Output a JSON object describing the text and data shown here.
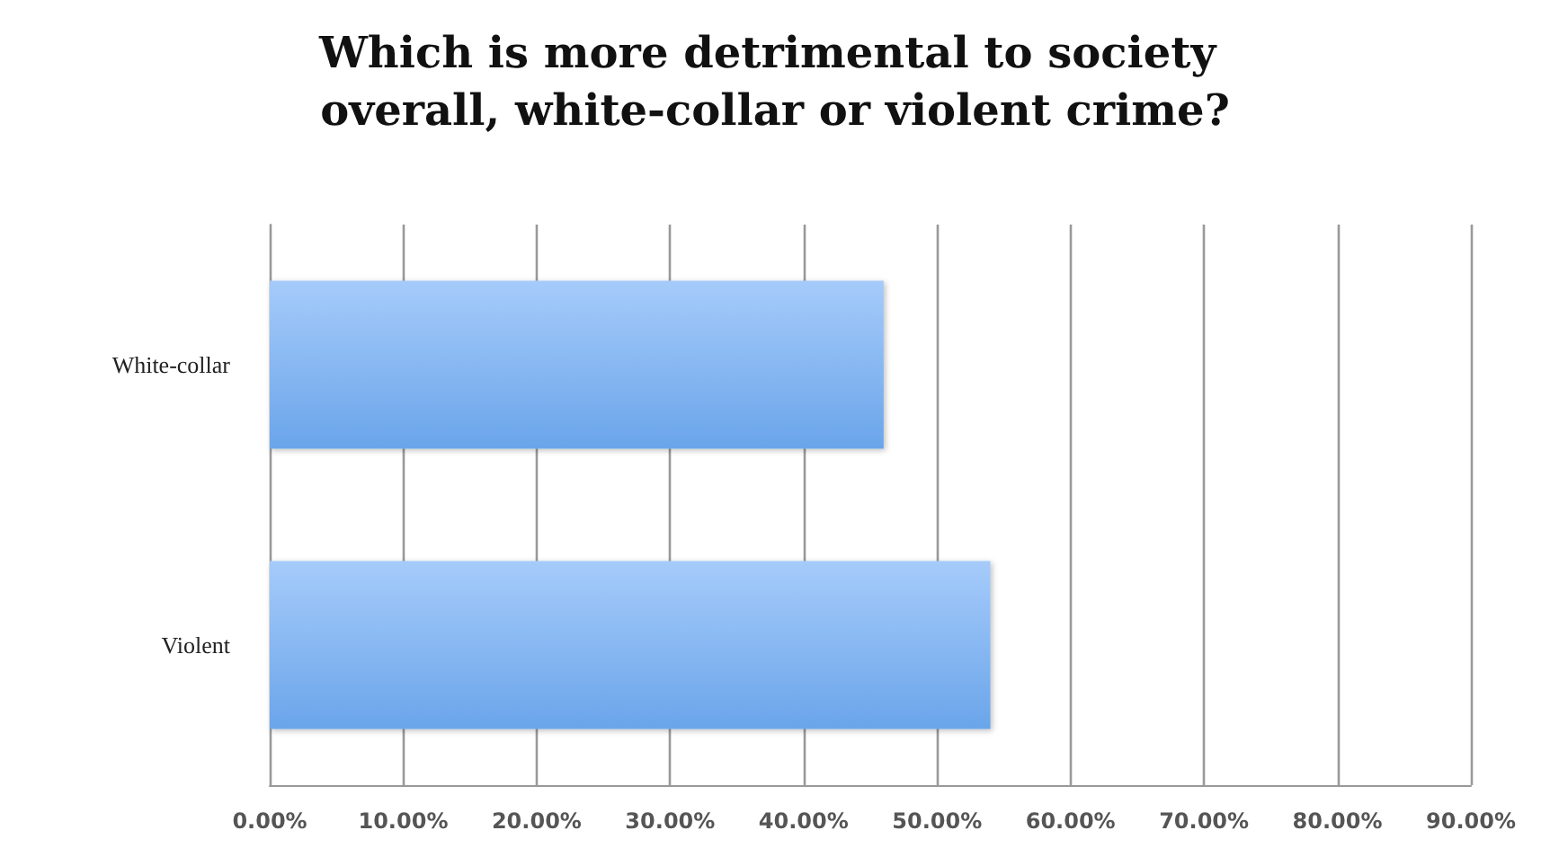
{
  "chart_data": {
    "type": "bar",
    "orientation": "horizontal",
    "title": "Which is more detrimental to society overall, white-collar or violent crime?",
    "categories": [
      "White-collar",
      "Violent"
    ],
    "values": [
      46,
      54
    ],
    "color": "#6aa5ea",
    "xlim": [
      0,
      90
    ],
    "xticks": [
      {
        "value": 0,
        "label": "0.00%"
      },
      {
        "value": 10,
        "label": "10.00%"
      },
      {
        "value": 20,
        "label": "20.00%"
      },
      {
        "value": 30,
        "label": "30.00%"
      },
      {
        "value": 40,
        "label": "40.00%"
      },
      {
        "value": 50,
        "label": "50.00%"
      },
      {
        "value": 60,
        "label": "60.00%"
      },
      {
        "value": 70,
        "label": "70.00%"
      },
      {
        "value": 80,
        "label": "80.00%"
      },
      {
        "value": 90,
        "label": "90.00%"
      }
    ],
    "grid": "x"
  }
}
